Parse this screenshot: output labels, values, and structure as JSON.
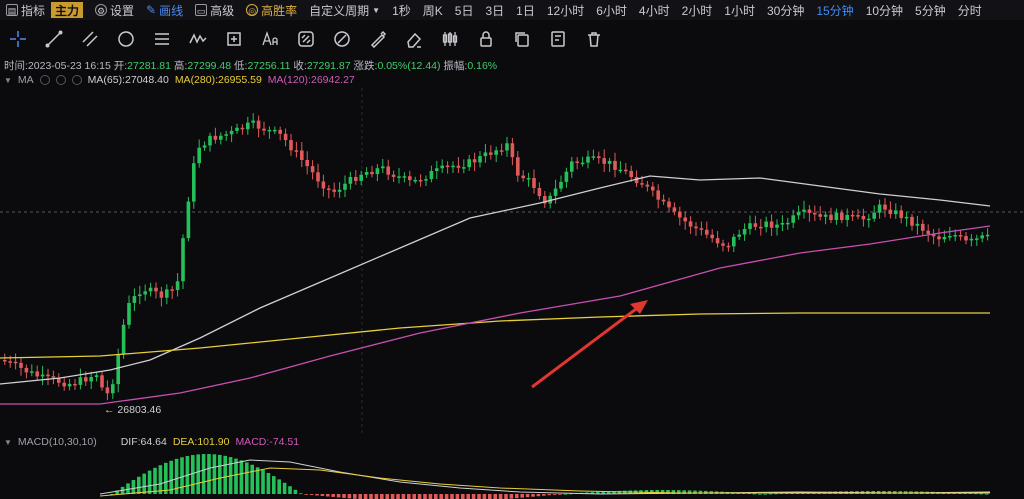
{
  "topbar": {
    "indicator": "指标",
    "zhuli": "主力",
    "settings": "设置",
    "draw": "画线",
    "advanced": "高级",
    "winrate": "高胜率",
    "custom_period": "自定义周期",
    "periods": [
      "1秒",
      "周K",
      "5日",
      "3日",
      "1日",
      "12小时",
      "6小时",
      "4小时",
      "2小时",
      "1小时",
      "30分钟",
      "15分钟",
      "10分钟",
      "5分钟",
      "分时"
    ],
    "active_period": "15分钟"
  },
  "ohlc": {
    "time_label": "时间:",
    "time": "2023-05-23 16:15",
    "open_label": "开:",
    "open": "27281.81",
    "high_label": "高:",
    "high": "27299.48",
    "low_label": "低:",
    "low": "27256.11",
    "close_label": "收:",
    "close": "27291.87",
    "change_label": "涨跌:",
    "change": "0.05%(12.44)",
    "amp_label": "振幅:",
    "amp": "0.16%"
  },
  "ma": {
    "label": "MA",
    "ma65": "MA(65):27048.40",
    "ma280": "MA(280):26955.59",
    "ma120": "MA(120):26942.27",
    "colors": {
      "ma65": "#cfcfd4",
      "ma280": "#e8cf3a",
      "ma120": "#c84fb0"
    }
  },
  "low_marker": "26803.46",
  "macd": {
    "label": "MACD(10,30,10)",
    "dif": "DIF:64.64",
    "dea": "DEA:101.90",
    "macd": "MACD:-74.51"
  },
  "colors": {
    "up": "#26c05a",
    "down": "#e05a5a",
    "arrow": "#e0372f"
  }
}
